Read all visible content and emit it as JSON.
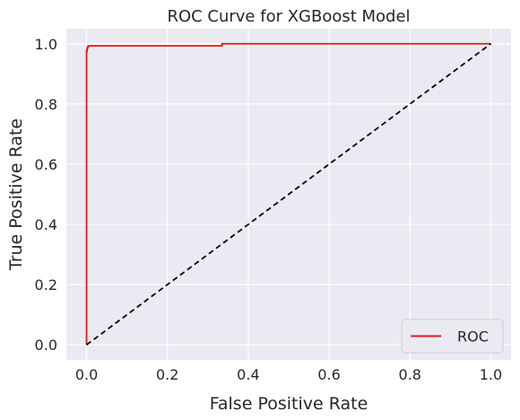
{
  "chart_data": {
    "type": "line",
    "title": "ROC Curve for XGBoost Model",
    "xlabel": "False Positive Rate",
    "ylabel": "True Positive Rate",
    "xlim": [
      -0.05,
      1.05
    ],
    "ylim": [
      -0.05,
      1.05
    ],
    "xticks": [
      0.0,
      0.2,
      0.4,
      0.6,
      0.8,
      1.0
    ],
    "yticks": [
      0.0,
      0.2,
      0.4,
      0.6,
      0.8,
      1.0
    ],
    "xtick_labels": [
      "0.0",
      "0.2",
      "0.4",
      "0.6",
      "0.8",
      "1.0"
    ],
    "ytick_labels": [
      "0.0",
      "0.2",
      "0.4",
      "0.6",
      "0.8",
      "1.0"
    ],
    "grid": true,
    "legend_position": "bottom-right",
    "series": [
      {
        "name": "ROC",
        "color": "#e31a1c",
        "style": "solid",
        "x": [
          0.0,
          0.0,
          0.0,
          0.001,
          0.001,
          0.002,
          0.002,
          0.004,
          0.004,
          0.335,
          0.335,
          1.0,
          1.0
        ],
        "y": [
          0.0,
          0.95,
          0.975,
          0.975,
          0.982,
          0.982,
          0.988,
          0.988,
          0.993,
          0.993,
          1.0,
          1.0,
          1.0
        ]
      },
      {
        "color": "#000000",
        "style": "dashed",
        "x": [
          0.0,
          1.0
        ],
        "y": [
          0.0,
          1.0
        ]
      }
    ]
  },
  "colors": {
    "plot_background": "#eaeaf2",
    "grid": "#ffffff",
    "roc": "#e31a1c",
    "diagonal": "#000000"
  }
}
